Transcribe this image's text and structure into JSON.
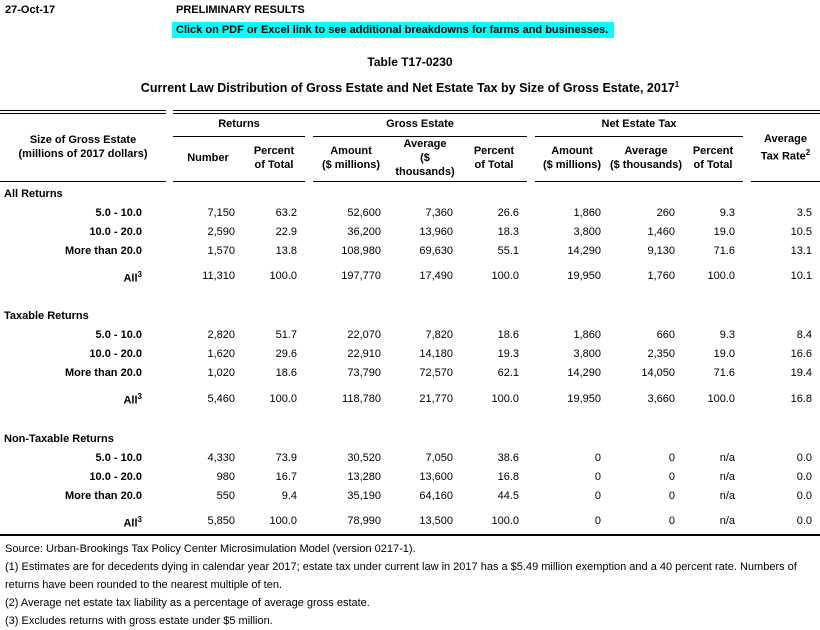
{
  "page": {
    "date": "27-Oct-17",
    "preliminary_label": "PRELIMINARY RESULTS",
    "notice_label": "Click on PDF or Excel link to see additional breakdowns for farms and businesses.",
    "highlight_color": "#00FFFF",
    "table_number": "Table T17-0230",
    "title": "Current Law Distribution of Gross Estate and Net Estate Tax by Size of Gross Estate, 2017",
    "title_sup": "1"
  },
  "table": {
    "row_header": {
      "line1": "Size of Gross Estate",
      "line2": "(millions of 2017 dollars)"
    },
    "groups": [
      {
        "label": "Returns"
      },
      {
        "label": "Gross Estate"
      },
      {
        "label": "Net Estate Tax"
      }
    ],
    "subheaders": [
      {
        "line1": "Number",
        "line2": ""
      },
      {
        "line1": "Percent",
        "line2": "of Total"
      },
      {
        "line1": "Amount",
        "line2": "($ millions)"
      },
      {
        "line1": "Average",
        "line2": "($ thousands)"
      },
      {
        "line1": "Percent",
        "line2": "of Total"
      },
      {
        "line1": "Amount",
        "line2": "($ millions)"
      },
      {
        "line1": "Average",
        "line2": "($ thousands)"
      },
      {
        "line1": "Percent",
        "line2": "of Total"
      }
    ],
    "avg_tax_rate": {
      "line1": "Average",
      "line2": "Tax Rate",
      "sup": "2"
    },
    "sections": [
      {
        "label": "All Returns",
        "rows": [
          {
            "label": "5.0 - 10.0",
            "sup": "",
            "values": [
              "7,150",
              "63.2",
              "52,600",
              "7,360",
              "26.6",
              "1,860",
              "260",
              "9.3",
              "3.5"
            ]
          },
          {
            "label": "10.0 - 20.0",
            "sup": "",
            "values": [
              "2,590",
              "22.9",
              "36,200",
              "13,960",
              "18.3",
              "3,800",
              "1,460",
              "19.0",
              "10.5"
            ]
          },
          {
            "label": "More than 20.0",
            "sup": "",
            "values": [
              "1,570",
              "13.8",
              "108,980",
              "69,630",
              "55.1",
              "14,290",
              "9,130",
              "71.6",
              "13.1"
            ]
          },
          {
            "label": "All",
            "sup": "3",
            "values": [
              "11,310",
              "100.0",
              "197,770",
              "17,490",
              "100.0",
              "19,950",
              "1,760",
              "100.0",
              "10.1"
            ]
          }
        ]
      },
      {
        "label": "Taxable Returns",
        "rows": [
          {
            "label": "5.0 - 10.0",
            "sup": "",
            "values": [
              "2,820",
              "51.7",
              "22,070",
              "7,820",
              "18.6",
              "1,860",
              "660",
              "9.3",
              "8.4"
            ]
          },
          {
            "label": "10.0 - 20.0",
            "sup": "",
            "values": [
              "1,620",
              "29.6",
              "22,910",
              "14,180",
              "19.3",
              "3,800",
              "2,350",
              "19.0",
              "16.6"
            ]
          },
          {
            "label": "More than 20.0",
            "sup": "",
            "values": [
              "1,020",
              "18.6",
              "73,790",
              "72,570",
              "62.1",
              "14,290",
              "14,050",
              "71.6",
              "19.4"
            ]
          },
          {
            "label": "All",
            "sup": "3",
            "values": [
              "5,460",
              "100.0",
              "118,780",
              "21,770",
              "100.0",
              "19,950",
              "3,660",
              "100.0",
              "16.8"
            ]
          }
        ]
      },
      {
        "label": "Non-Taxable Returns",
        "rows": [
          {
            "label": "5.0 - 10.0",
            "sup": "",
            "values": [
              "4,330",
              "73.9",
              "30,520",
              "7,050",
              "38.6",
              "0",
              "0",
              "n/a",
              "0.0"
            ]
          },
          {
            "label": "10.0 - 20.0",
            "sup": "",
            "values": [
              "980",
              "16.7",
              "13,280",
              "13,600",
              "16.8",
              "0",
              "0",
              "n/a",
              "0.0"
            ]
          },
          {
            "label": "More than 20.0",
            "sup": "",
            "values": [
              "550",
              "9.4",
              "35,190",
              "64,160",
              "44.5",
              "0",
              "0",
              "n/a",
              "0.0"
            ]
          },
          {
            "label": "All",
            "sup": "3",
            "values": [
              "5,850",
              "100.0",
              "78,990",
              "13,500",
              "100.0",
              "0",
              "0",
              "n/a",
              "0.0"
            ]
          }
        ]
      }
    ]
  },
  "footnotes": {
    "source": "Source: Urban-Brookings Tax Policy Center Microsimulation Model (version 0217-1).",
    "notes": [
      "(1) Estimates are for decedents dying in calendar year 2017; estate tax under current law in 2017 has a $5.49 million exemption and a 40 percent rate. Numbers of returns have been rounded to the nearest multiple of ten.",
      "(2) Average net estate tax liability as a percentage of average gross estate.",
      "(3) Excludes returns with gross estate under $5 million."
    ]
  }
}
